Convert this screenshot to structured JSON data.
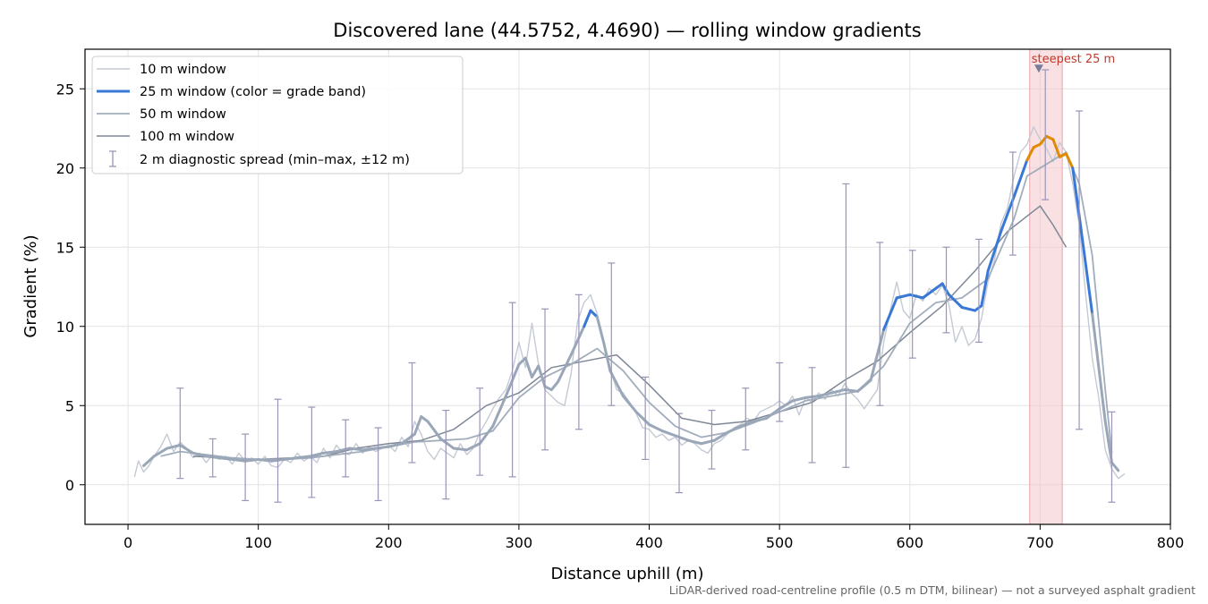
{
  "chart_data": {
    "type": "line",
    "title": "Discovered lane (44.5752, 4.4690) — rolling window gradients",
    "xlabel": "Distance uphill (m)",
    "ylabel": "Gradient (%)",
    "xlim": [
      -33,
      800
    ],
    "ylim": [
      -2.5,
      27.5
    ],
    "xticks": [
      0,
      100,
      200,
      300,
      400,
      500,
      600,
      700,
      800
    ],
    "yticks": [
      0,
      5,
      10,
      15,
      20,
      25
    ],
    "grid": true,
    "legend_position": "upper-left",
    "footnote": "LiDAR-derived road-centreline profile (0.5 m DTM, bilinear) — not a surveyed asphalt gradient",
    "annotation": {
      "text": "steepest 25 m",
      "x": 699,
      "y": 26.3,
      "band": [
        692,
        717
      ]
    },
    "colors": {
      "w10": "#c4cad4",
      "w25": "#9aa7b8",
      "w25_band_mid": "#3a78d6",
      "w25_band_high": "#e08a00",
      "w50": "#a2adbc",
      "w100": "#7e8796",
      "errorbar": "#9a94b8",
      "band": "#f3c6cc",
      "annot": "#c0392b"
    },
    "grade_bands": [
      {
        "range": [
          0,
          10
        ],
        "color": "#9aa7b8"
      },
      {
        "range": [
          10,
          20
        ],
        "color": "#3a78d6"
      },
      {
        "range": [
          20,
          30
        ],
        "color": "#e08a00"
      }
    ],
    "series": [
      {
        "name": "10 m window",
        "key": "w10",
        "x": [
          5,
          8,
          12,
          16,
          20,
          25,
          30,
          35,
          40,
          45,
          50,
          55,
          60,
          65,
          70,
          75,
          80,
          85,
          90,
          95,
          100,
          105,
          110,
          115,
          120,
          125,
          130,
          135,
          140,
          145,
          150,
          155,
          160,
          165,
          170,
          175,
          180,
          185,
          190,
          195,
          200,
          205,
          210,
          215,
          220,
          225,
          230,
          235,
          240,
          245,
          250,
          255,
          260,
          265,
          270,
          275,
          280,
          285,
          290,
          295,
          300,
          305,
          310,
          315,
          320,
          325,
          330,
          335,
          340,
          345,
          350,
          355,
          360,
          365,
          370,
          375,
          380,
          385,
          390,
          395,
          400,
          405,
          410,
          415,
          420,
          425,
          430,
          435,
          440,
          445,
          450,
          455,
          460,
          465,
          470,
          475,
          480,
          485,
          490,
          495,
          500,
          505,
          510,
          515,
          520,
          525,
          530,
          535,
          540,
          545,
          550,
          555,
          560,
          565,
          570,
          575,
          580,
          585,
          590,
          595,
          600,
          605,
          610,
          615,
          620,
          625,
          630,
          635,
          640,
          645,
          650,
          655,
          660,
          665,
          670,
          675,
          680,
          685,
          690,
          695,
          700,
          705,
          710,
          715,
          720,
          725,
          730,
          735,
          740,
          745,
          750,
          755,
          760,
          765
        ],
        "y": [
          0.5,
          1.5,
          0.8,
          1.2,
          1.8,
          2.4,
          3.2,
          2.1,
          2.7,
          2.3,
          1.7,
          2.0,
          1.4,
          1.9,
          1.6,
          1.8,
          1.3,
          2.0,
          1.5,
          1.7,
          1.3,
          1.8,
          1.2,
          1.1,
          1.6,
          1.4,
          2.0,
          1.5,
          1.8,
          1.4,
          2.3,
          1.7,
          2.5,
          2.0,
          1.9,
          2.6,
          2.0,
          2.4,
          2.1,
          2.3,
          2.5,
          2.1,
          3.0,
          2.4,
          4.0,
          3.2,
          2.1,
          1.6,
          2.3,
          2.0,
          1.7,
          2.6,
          1.9,
          2.3,
          3.3,
          4.0,
          4.8,
          5.5,
          6.0,
          7.2,
          9.0,
          7.4,
          10.2,
          7.6,
          6.0,
          5.6,
          5.2,
          5.0,
          7.0,
          10.3,
          11.5,
          12.0,
          10.8,
          9.0,
          7.4,
          6.0,
          5.8,
          5.2,
          4.5,
          3.6,
          3.5,
          3.0,
          3.2,
          2.8,
          3.0,
          2.5,
          2.8,
          2.6,
          2.2,
          2.0,
          2.6,
          2.8,
          3.2,
          3.6,
          3.8,
          4.2,
          4.0,
          4.6,
          4.8,
          5.0,
          5.3,
          5.0,
          5.6,
          4.4,
          5.5,
          5.2,
          5.8,
          5.4,
          6.0,
          5.6,
          6.4,
          5.8,
          5.4,
          4.8,
          5.4,
          6.0,
          9.0,
          11.0,
          12.8,
          11.0,
          10.5,
          12.0,
          11.6,
          12.4,
          12.0,
          12.6,
          11.4,
          9.0,
          10.0,
          8.8,
          9.2,
          10.5,
          12.8,
          14.2,
          16.5,
          17.5,
          19.5,
          21.0,
          21.5,
          22.6,
          21.8,
          21.2,
          20.4,
          21.6,
          21.0,
          19.0,
          16.4,
          12.0,
          8.0,
          5.5,
          2.2,
          1.0,
          0.4,
          0.7
        ]
      },
      {
        "name": "25 m window (color = grade band)",
        "key": "w25",
        "x": [
          12,
          20,
          30,
          40,
          50,
          60,
          70,
          80,
          90,
          100,
          110,
          120,
          130,
          140,
          150,
          160,
          170,
          180,
          190,
          200,
          210,
          220,
          225,
          230,
          240,
          250,
          260,
          270,
          280,
          290,
          300,
          305,
          310,
          315,
          320,
          325,
          330,
          340,
          350,
          355,
          360,
          365,
          370,
          380,
          390,
          400,
          410,
          420,
          430,
          440,
          450,
          460,
          470,
          480,
          490,
          500,
          510,
          520,
          530,
          540,
          550,
          560,
          570,
          580,
          590,
          600,
          610,
          620,
          625,
          630,
          640,
          650,
          655,
          660,
          670,
          680,
          690,
          695,
          700,
          705,
          710,
          715,
          720,
          725,
          730,
          740,
          750,
          755,
          760
        ],
        "y": [
          1.2,
          1.8,
          2.3,
          2.5,
          2.0,
          1.8,
          1.7,
          1.6,
          1.5,
          1.6,
          1.5,
          1.6,
          1.7,
          1.8,
          2.0,
          2.1,
          2.3,
          2.2,
          2.3,
          2.4,
          2.6,
          3.2,
          4.3,
          4.0,
          2.9,
          2.3,
          2.2,
          2.6,
          3.7,
          5.6,
          7.6,
          8.0,
          6.8,
          7.5,
          6.2,
          6.0,
          6.5,
          8.2,
          10.0,
          11.0,
          10.6,
          9.0,
          7.2,
          5.6,
          4.6,
          3.8,
          3.4,
          3.1,
          2.8,
          2.6,
          2.8,
          3.3,
          3.7,
          4.0,
          4.2,
          4.8,
          5.3,
          5.5,
          5.6,
          5.8,
          6.0,
          5.9,
          6.6,
          9.8,
          11.8,
          12.0,
          11.8,
          12.4,
          12.7,
          12.0,
          11.2,
          11.0,
          11.3,
          13.5,
          16.0,
          18.2,
          20.5,
          21.3,
          21.5,
          22.0,
          21.8,
          20.7,
          20.9,
          20.0,
          17.0,
          10.8,
          4.0,
          1.4,
          0.9
        ]
      },
      {
        "name": "50 m window",
        "key": "w50",
        "x": [
          25,
          40,
          60,
          80,
          100,
          120,
          140,
          160,
          180,
          200,
          220,
          240,
          260,
          280,
          300,
          320,
          340,
          360,
          380,
          400,
          420,
          440,
          460,
          480,
          500,
          520,
          540,
          560,
          580,
          600,
          620,
          640,
          660,
          680,
          690,
          700,
          710,
          720,
          730,
          740,
          750,
          755
        ],
        "y": [
          1.8,
          2.1,
          1.9,
          1.7,
          1.6,
          1.6,
          1.7,
          1.9,
          2.1,
          2.4,
          2.7,
          2.8,
          2.9,
          3.4,
          5.5,
          6.8,
          7.6,
          8.6,
          7.2,
          5.2,
          3.7,
          3.0,
          3.3,
          3.9,
          4.6,
          5.3,
          5.6,
          5.9,
          7.5,
          10.2,
          11.5,
          11.8,
          13.0,
          16.8,
          19.5,
          20.0,
          20.5,
          21.0,
          19.0,
          14.5,
          6.0,
          2.0
        ]
      },
      {
        "name": "100 m window",
        "key": "w100",
        "x": [
          50,
          75,
          100,
          125,
          150,
          175,
          200,
          225,
          250,
          275,
          300,
          325,
          350,
          375,
          400,
          425,
          450,
          475,
          500,
          525,
          550,
          575,
          600,
          625,
          650,
          675,
          700,
          710,
          720
        ],
        "y": [
          1.8,
          1.7,
          1.6,
          1.7,
          1.8,
          2.3,
          2.6,
          2.8,
          3.5,
          5.0,
          5.8,
          7.4,
          7.8,
          8.2,
          6.3,
          4.2,
          3.8,
          4.0,
          4.6,
          5.2,
          6.6,
          7.8,
          9.6,
          11.3,
          13.5,
          16.0,
          17.6,
          16.4,
          15.0
        ]
      }
    ],
    "errorbars": {
      "name": "2 m diagnostic spread (min–max, ±12 m)",
      "x": [
        40,
        65,
        90,
        115,
        141,
        167,
        192,
        218,
        244,
        270,
        295,
        320,
        346,
        371,
        397,
        423,
        448,
        474,
        500,
        525,
        551,
        577,
        602,
        628,
        653,
        679,
        704,
        730,
        755
      ],
      "low": [
        0.4,
        0.5,
        -1.0,
        -1.1,
        -0.8,
        0.5,
        -1.0,
        1.4,
        -0.9,
        0.6,
        0.5,
        2.2,
        3.5,
        5.0,
        1.6,
        -0.5,
        1.0,
        2.2,
        4.0,
        1.4,
        1.1,
        5.0,
        8.0,
        9.6,
        9.0,
        14.5,
        18.0,
        3.5,
        -1.1
      ],
      "high": [
        6.1,
        2.9,
        3.2,
        5.4,
        4.9,
        4.1,
        3.6,
        7.7,
        4.7,
        6.1,
        11.5,
        11.1,
        12.0,
        14.0,
        6.8,
        4.5,
        4.7,
        6.1,
        7.7,
        7.4,
        19.0,
        15.3,
        14.8,
        15.0,
        15.5,
        21.0,
        26.2,
        23.6,
        4.6
      ]
    }
  }
}
